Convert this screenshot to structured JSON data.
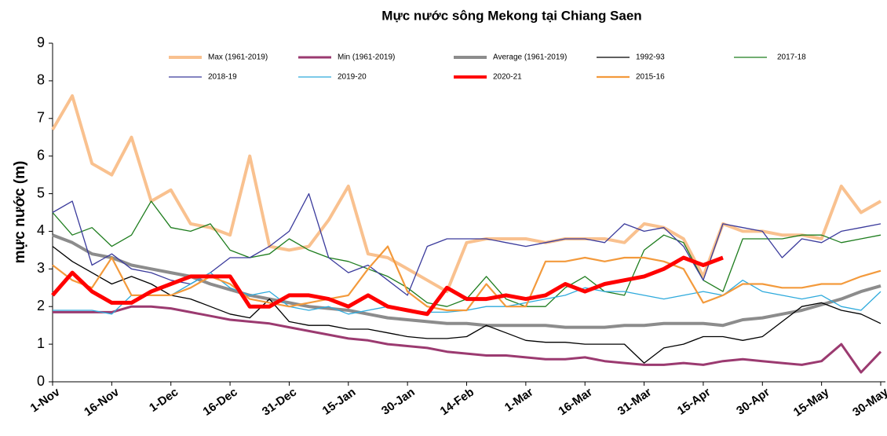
{
  "chart_data": {
    "type": "line",
    "title": "Mực nước sông Mekong tại Chiang Saen",
    "y_label": "mực nước (m)",
    "categories": [
      "1-Nov",
      null,
      null,
      "16-Nov",
      null,
      null,
      "1-Dec",
      null,
      null,
      "16-Dec",
      null,
      null,
      "31-Dec",
      null,
      null,
      "15-Jan",
      null,
      null,
      "30-Jan",
      null,
      null,
      "14-Feb",
      null,
      null,
      "1-Mar",
      null,
      null,
      "16-Mar",
      null,
      null,
      "31-Mar",
      null,
      null,
      "15-Apr",
      null,
      null,
      "30-Apr",
      null,
      null,
      "15-May",
      null,
      null,
      "30-May"
    ],
    "ylim": [
      0,
      9
    ],
    "yticks": [
      0,
      1,
      2,
      3,
      4,
      5,
      6,
      7,
      8,
      9
    ],
    "grid": false,
    "series": [
      {
        "name": "Max (1961-2019)",
        "color": "#f9c18f",
        "values": [
          6.7,
          7.6,
          5.8,
          5.5,
          6.5,
          4.8,
          5.1,
          4.2,
          4.1,
          3.9,
          6.0,
          3.6,
          3.5,
          3.6,
          4.3,
          5.2,
          3.4,
          3.3,
          3.0,
          2.7,
          2.4,
          3.7,
          3.8,
          3.8,
          3.8,
          3.7,
          3.8,
          3.8,
          3.8,
          3.7,
          4.2,
          4.1,
          3.8,
          2.8,
          4.2,
          4.0,
          4.0,
          3.9,
          3.9,
          3.8,
          5.2,
          4.5,
          4.8
        ]
      },
      {
        "name": "Min (1961-2019)",
        "color": "#9b3a70",
        "values": [
          1.85,
          1.85,
          1.85,
          1.85,
          2.0,
          2.0,
          1.95,
          1.85,
          1.75,
          1.65,
          1.6,
          1.55,
          1.45,
          1.35,
          1.25,
          1.15,
          1.1,
          1.0,
          0.95,
          0.9,
          0.8,
          0.75,
          0.7,
          0.7,
          0.65,
          0.6,
          0.6,
          0.65,
          0.55,
          0.5,
          0.45,
          0.45,
          0.5,
          0.45,
          0.55,
          0.6,
          0.55,
          0.5,
          0.45,
          0.55,
          1.0,
          0.25,
          0.8
        ]
      },
      {
        "name": "Average (1961-2019)",
        "color": "#8c8c8c",
        "values": [
          3.9,
          3.7,
          3.4,
          3.3,
          3.1,
          3.0,
          2.9,
          2.8,
          2.6,
          2.45,
          2.3,
          2.2,
          2.1,
          2.0,
          1.95,
          1.9,
          1.8,
          1.7,
          1.65,
          1.6,
          1.55,
          1.55,
          1.5,
          1.5,
          1.5,
          1.5,
          1.45,
          1.45,
          1.45,
          1.5,
          1.5,
          1.55,
          1.55,
          1.55,
          1.5,
          1.65,
          1.7,
          1.8,
          1.9,
          2.05,
          2.2,
          2.4,
          2.55
        ]
      },
      {
        "name": "1992-93",
        "color": "#000000",
        "values": [
          3.6,
          3.2,
          2.9,
          2.6,
          2.8,
          2.6,
          2.3,
          2.2,
          2.0,
          1.8,
          1.7,
          2.2,
          1.6,
          1.5,
          1.5,
          1.4,
          1.4,
          1.3,
          1.2,
          1.15,
          1.15,
          1.2,
          1.5,
          1.3,
          1.1,
          1.05,
          1.05,
          1.0,
          1.0,
          1.0,
          0.5,
          0.9,
          1.0,
          1.2,
          1.2,
          1.1,
          1.2,
          1.6,
          2.0,
          2.1,
          1.9,
          1.8,
          1.55
        ]
      },
      {
        "name": "2017-18",
        "color": "#1e7d1e",
        "values": [
          4.5,
          3.9,
          4.1,
          3.6,
          3.9,
          4.8,
          4.1,
          4.0,
          4.2,
          3.5,
          3.3,
          3.4,
          3.8,
          3.5,
          3.3,
          3.2,
          3.0,
          2.8,
          2.5,
          2.1,
          2.0,
          2.2,
          2.8,
          2.2,
          2.0,
          2.0,
          2.5,
          2.8,
          2.4,
          2.3,
          3.5,
          3.9,
          3.7,
          2.7,
          2.4,
          3.8,
          3.8,
          3.8,
          3.9,
          3.9,
          3.7,
          3.8,
          3.9
        ]
      },
      {
        "name": "2018-19",
        "color": "#3b3b9c",
        "values": [
          4.5,
          4.8,
          3.1,
          3.4,
          3.0,
          2.9,
          2.7,
          2.6,
          2.9,
          3.3,
          3.3,
          3.6,
          4.0,
          5.0,
          3.3,
          2.9,
          3.1,
          2.7,
          2.3,
          3.6,
          3.8,
          3.8,
          3.8,
          3.7,
          3.6,
          3.7,
          3.8,
          3.8,
          3.7,
          4.2,
          4.0,
          4.1,
          3.6,
          2.7,
          4.2,
          4.1,
          4.0,
          3.3,
          3.8,
          3.7,
          4.0,
          4.1,
          4.2
        ]
      },
      {
        "name": "2019-20",
        "color": "#2eaadc",
        "values": [
          1.9,
          1.9,
          1.9,
          1.8,
          2.3,
          2.3,
          2.3,
          2.6,
          2.9,
          2.5,
          2.3,
          2.4,
          2.0,
          1.9,
          2.0,
          1.8,
          1.9,
          2.0,
          1.9,
          1.85,
          1.85,
          1.9,
          2.0,
          2.0,
          2.1,
          2.2,
          2.3,
          2.5,
          2.4,
          2.4,
          2.3,
          2.2,
          2.3,
          2.4,
          2.3,
          2.7,
          2.4,
          2.3,
          2.2,
          2.3,
          2.0,
          1.9,
          2.4
        ]
      },
      {
        "name": "2020-21",
        "color": "#ff0000",
        "values": [
          2.3,
          2.9,
          2.4,
          2.1,
          2.1,
          2.4,
          2.6,
          2.8,
          2.8,
          2.8,
          2.0,
          2.0,
          2.3,
          2.3,
          2.2,
          2.0,
          2.3,
          2.0,
          1.9,
          1.8,
          2.5,
          2.2,
          2.2,
          2.3,
          2.2,
          2.3,
          2.6,
          2.4,
          2.6,
          2.7,
          2.8,
          3.0,
          3.3,
          3.1,
          3.3,
          null,
          null,
          null,
          null,
          null,
          null,
          null,
          null
        ]
      },
      {
        "name": "2015-16",
        "color": "#f39a3c",
        "values": [
          3.1,
          2.7,
          2.5,
          3.3,
          2.3,
          2.3,
          2.3,
          2.5,
          2.8,
          2.6,
          2.2,
          2.1,
          2.0,
          2.1,
          2.2,
          2.3,
          3.0,
          3.6,
          2.4,
          2.0,
          1.9,
          1.9,
          2.6,
          2.0,
          2.0,
          3.2,
          3.2,
          3.3,
          3.2,
          3.3,
          3.3,
          3.2,
          3.0,
          2.1,
          2.3,
          2.6,
          2.6,
          2.5,
          2.5,
          2.6,
          2.6,
          2.8,
          2.95
        ]
      }
    ]
  }
}
